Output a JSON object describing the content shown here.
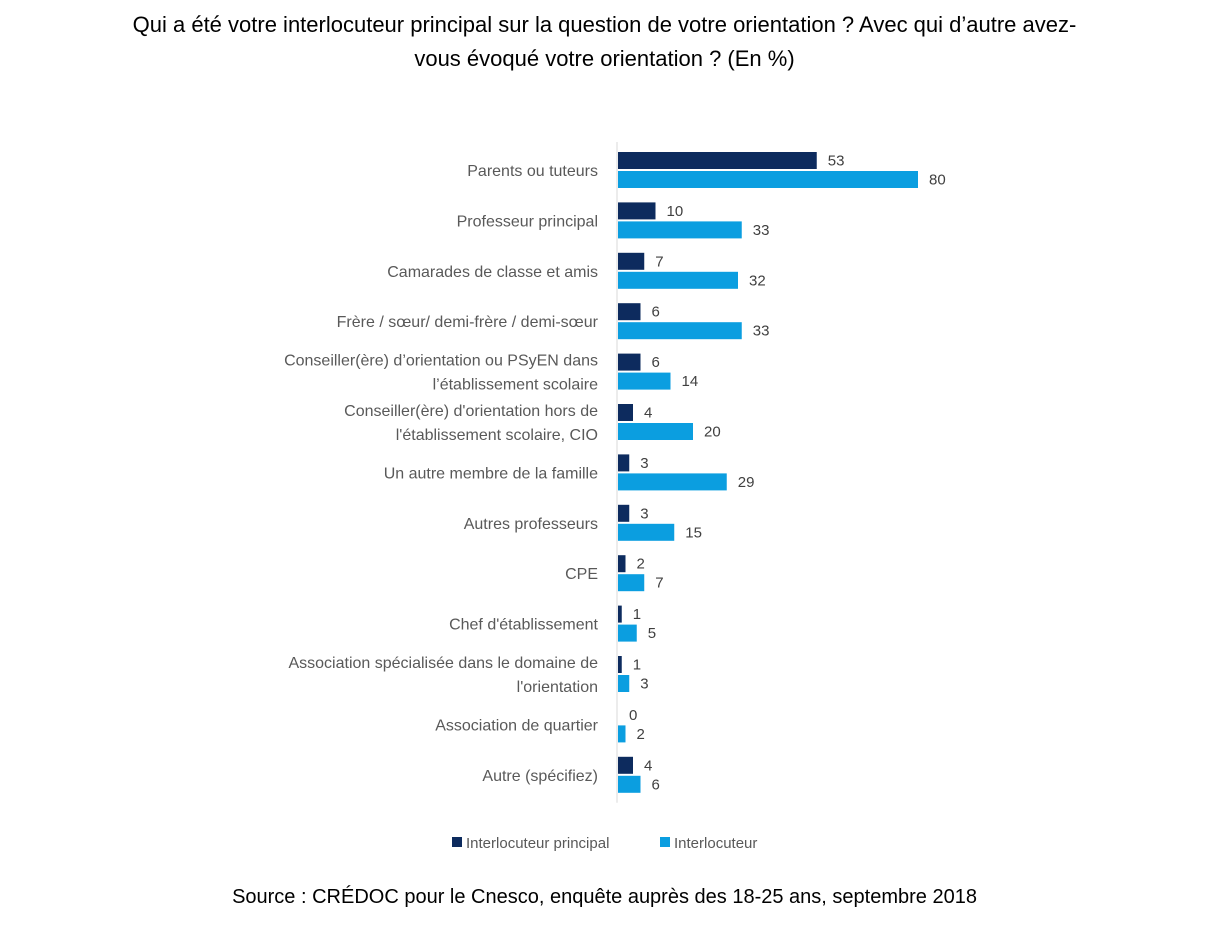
{
  "title": {
    "line1": "Qui a été votre interlocuteur principal sur la question de votre orientation ? Avec qui d’autre avez-",
    "line2": "vous évoqué votre orientation ? (En %)"
  },
  "source": "Source : CRÉDOC pour le Cnesco, enquête auprès des 18-25 ans, septembre 2018",
  "colors": {
    "principal": "#0d2b5e",
    "interlocuteur": "#0b9ee0"
  },
  "chart_data": {
    "type": "bar",
    "orientation": "horizontal",
    "categories": [
      [
        "Parents ou tuteurs"
      ],
      [
        "Professeur principal"
      ],
      [
        "Camarades de classe et amis"
      ],
      [
        "Frère / sœur/ demi-frère / demi-sœur"
      ],
      [
        "Conseiller(ère)  d’orientation ou PSyEN dans",
        "l’établissement scolaire"
      ],
      [
        "Conseiller(ère) d'orientation hors de",
        "l'établissement scolaire, CIO"
      ],
      [
        "Un autre membre de la famille"
      ],
      [
        "Autres professeurs"
      ],
      [
        "CPE"
      ],
      [
        "Chef d'établissement"
      ],
      [
        "Association spécialisée dans le domaine de",
        "l'orientation"
      ],
      [
        "Association de quartier"
      ],
      [
        "Autre (spécifiez)"
      ]
    ],
    "series": [
      {
        "name": "Interlocuteur principal",
        "values": [
          53,
          10,
          7,
          6,
          6,
          4,
          3,
          3,
          2,
          1,
          1,
          0,
          4
        ]
      },
      {
        "name": "Interlocuteur",
        "values": [
          80,
          33,
          32,
          33,
          14,
          20,
          29,
          15,
          7,
          5,
          3,
          2,
          6
        ]
      }
    ],
    "xlim": [
      0,
      100
    ],
    "grid": false,
    "legend": "bottom"
  }
}
